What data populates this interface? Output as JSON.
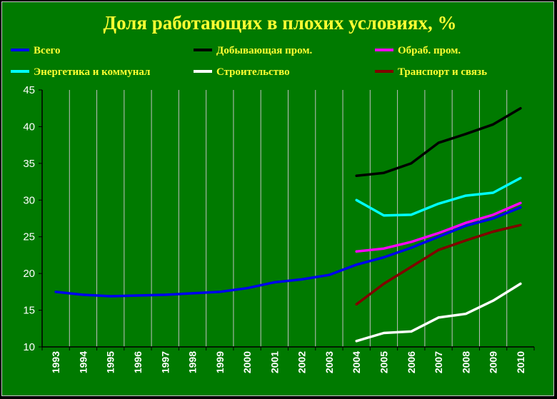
{
  "chart_data": {
    "type": "line",
    "title": "Доля работающих в плохих условиях, %",
    "ylim": [
      10,
      45
    ],
    "y_ticks": [
      "10",
      "15",
      "20",
      "25",
      "30",
      "35",
      "40",
      "45"
    ],
    "x": [
      "1993",
      "1994",
      "1995",
      "1996",
      "1997",
      "1998",
      "1999",
      "2000",
      "2001",
      "2002",
      "2003",
      "2004",
      "2005",
      "2006",
      "2007",
      "2008",
      "2009",
      "2010"
    ],
    "grid": "vertical",
    "legend_position": "top",
    "series": [
      {
        "name": "Всего",
        "color": "#0000ee",
        "values": [
          17.5,
          17.1,
          16.9,
          17.0,
          17.1,
          17.3,
          17.5,
          18.0,
          18.8,
          19.2,
          19.8,
          21.2,
          22.2,
          23.5,
          25.0,
          26.5,
          27.5,
          29.0
        ]
      },
      {
        "name": "Добывающая пром.",
        "color": "#000000",
        "values": [
          null,
          null,
          null,
          null,
          null,
          null,
          null,
          null,
          null,
          null,
          null,
          33.3,
          33.7,
          35.0,
          37.8,
          39.0,
          40.3,
          42.5
        ]
      },
      {
        "name": "Обраб. пром.",
        "color": "#ff00ff",
        "values": [
          null,
          null,
          null,
          null,
          null,
          null,
          null,
          null,
          null,
          null,
          null,
          23.0,
          23.4,
          24.3,
          25.5,
          26.9,
          28.0,
          29.6
        ]
      },
      {
        "name": "Энергетика и коммунал",
        "color": "#00ffff",
        "values": [
          null,
          null,
          null,
          null,
          null,
          null,
          null,
          null,
          null,
          null,
          null,
          30.0,
          27.9,
          28.0,
          29.5,
          30.6,
          31.0,
          33.0
        ]
      },
      {
        "name": "Строительство",
        "color": "#ffffff",
        "values": [
          null,
          null,
          null,
          null,
          null,
          null,
          null,
          null,
          null,
          null,
          null,
          10.8,
          11.9,
          12.1,
          14.0,
          14.5,
          16.3,
          18.6
        ]
      },
      {
        "name": "Транспорт и связь",
        "color": "#800000",
        "values": [
          null,
          null,
          null,
          null,
          null,
          null,
          null,
          null,
          null,
          null,
          null,
          15.8,
          18.6,
          20.9,
          23.2,
          24.5,
          25.7,
          26.6
        ]
      }
    ]
  }
}
